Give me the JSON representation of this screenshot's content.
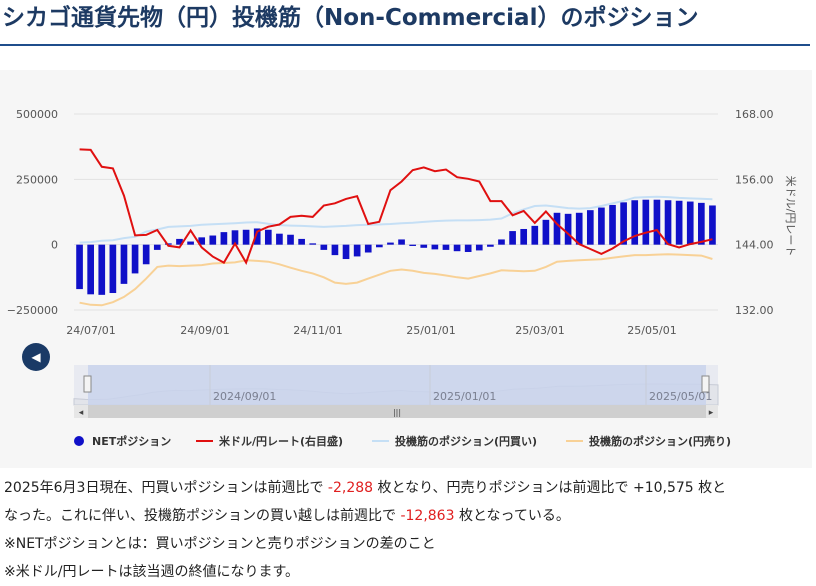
{
  "page": {
    "title": "シカゴ通貨先物（円）投機筋（Non-Commercial）のポジション"
  },
  "chart_data": {
    "type": "bar+line",
    "x_ticks": [
      "24/07/01",
      "24/09/01",
      "24/11/01",
      "25/01/01",
      "25/03/01",
      "25/05/01"
    ],
    "y_left": {
      "ticks": [
        "500000",
        "250000",
        "0",
        "−250000"
      ],
      "range": [
        -250000,
        500000
      ]
    },
    "y_right": {
      "label": "米ドル/円レート",
      "ticks": [
        "168.00",
        "156.00",
        "144.00",
        "132.00"
      ],
      "range": [
        132,
        168
      ]
    },
    "grid": true,
    "legend_position": "bottom",
    "colors": {
      "net": "#1010c8",
      "usdjpy": "#e01010",
      "long": "#c5dff5",
      "short": "#f8d196"
    },
    "series": [
      {
        "name": "NETポジション",
        "kind": "bar",
        "axis": "left",
        "values": [
          -170000,
          -190000,
          -192000,
          -185000,
          -150000,
          -110000,
          -75000,
          -20000,
          5000,
          22000,
          12000,
          28000,
          35000,
          48000,
          55000,
          57000,
          62000,
          57000,
          42000,
          38000,
          22000,
          5000,
          -20000,
          -40000,
          -55000,
          -45000,
          -30000,
          -10000,
          8000,
          20000,
          -5000,
          -12000,
          -18000,
          -20000,
          -25000,
          -28000,
          -22000,
          -8000,
          20000,
          52000,
          60000,
          72000,
          95000,
          122000,
          118000,
          122000,
          132000,
          142000,
          152000,
          162000,
          170000,
          172000,
          172000,
          170000,
          168000,
          165000,
          160000,
          150000
        ]
      },
      {
        "name": "米ドル/円レート(右目盛)",
        "kind": "line",
        "axis": "right",
        "values": [
          161.5,
          161.4,
          158.3,
          158.0,
          153.0,
          145.7,
          145.8,
          146.7,
          143.8,
          143.5,
          146.6,
          143.5,
          141.8,
          140.7,
          144.2,
          140.7,
          146.4,
          147.3,
          147.7,
          149.1,
          149.3,
          149.1,
          151.2,
          151.6,
          152.4,
          152.9,
          147.8,
          148.2,
          154.0,
          155.6,
          157.7,
          158.2,
          157.5,
          157.8,
          156.4,
          156.1,
          155.6,
          152.0,
          152.0,
          149.4,
          150.2,
          148.0,
          150.1,
          147.8,
          146.0,
          144.1,
          143.2,
          142.3,
          143.3,
          144.6,
          145.6,
          146.2,
          146.7,
          144.1,
          143.5,
          144.1,
          144.5,
          145.0
        ]
      },
      {
        "name": "投機筋のポジション(円買い)",
        "kind": "line",
        "axis": "left",
        "values": [
          8000,
          10000,
          15000,
          17000,
          25000,
          30000,
          50000,
          58000,
          68000,
          70000,
          72000,
          76000,
          78000,
          80000,
          82000,
          85000,
          86000,
          80000,
          75000,
          73000,
          72000,
          70000,
          68000,
          70000,
          72000,
          75000,
          76000,
          77000,
          79000,
          82000,
          84000,
          87000,
          90000,
          92000,
          93000,
          93000,
          94000,
          96000,
          100000,
          120000,
          135000,
          148000,
          150000,
          145000,
          140000,
          138000,
          140000,
          148000,
          158000,
          168000,
          180000,
          182000,
          183000,
          182000,
          179000,
          177000,
          176000,
          174000
        ]
      },
      {
        "name": "投機筋のポジション(円売り)",
        "kind": "line",
        "axis": "left",
        "values": [
          -222000,
          -230000,
          -232000,
          -220000,
          -200000,
          -170000,
          -130000,
          -85000,
          -80000,
          -82000,
          -80000,
          -78000,
          -72000,
          -70000,
          -68000,
          -60000,
          -62000,
          -65000,
          -75000,
          -88000,
          -100000,
          -110000,
          -125000,
          -145000,
          -150000,
          -145000,
          -130000,
          -115000,
          -100000,
          -95000,
          -100000,
          -108000,
          -112000,
          -118000,
          -125000,
          -130000,
          -120000,
          -110000,
          -98000,
          -100000,
          -102000,
          -100000,
          -85000,
          -65000,
          -62000,
          -60000,
          -58000,
          -56000,
          -50000,
          -45000,
          -40000,
          -40000,
          -38000,
          -37000,
          -38000,
          -40000,
          -42000,
          -55000
        ]
      }
    ]
  },
  "navigator": {
    "labels": [
      "2024/09/01",
      "2025/01/01",
      "2025/05/01"
    ],
    "handle_glyph": "|||",
    "left_arrow": "◂",
    "right_arrow": "▸",
    "nav_button": "◀"
  },
  "text": {
    "line1_a": "2025年6月3日現在、円買いポジションは前週比で ",
    "line1_b": "-2,288",
    "line1_c": " 枚となり、円売りポジションは前週比で +10,575 枚と",
    "line2_a": "なった。これに伴い、投機筋ポジションの買い越しは前週比で ",
    "line2_b": "-12,863",
    "line2_c": " 枚となっている。",
    "note1": "※NETポジションとは：買いポジションと売りポジションの差のこと",
    "note2": "※米ドル/円レートは該当週の終値になります。"
  }
}
